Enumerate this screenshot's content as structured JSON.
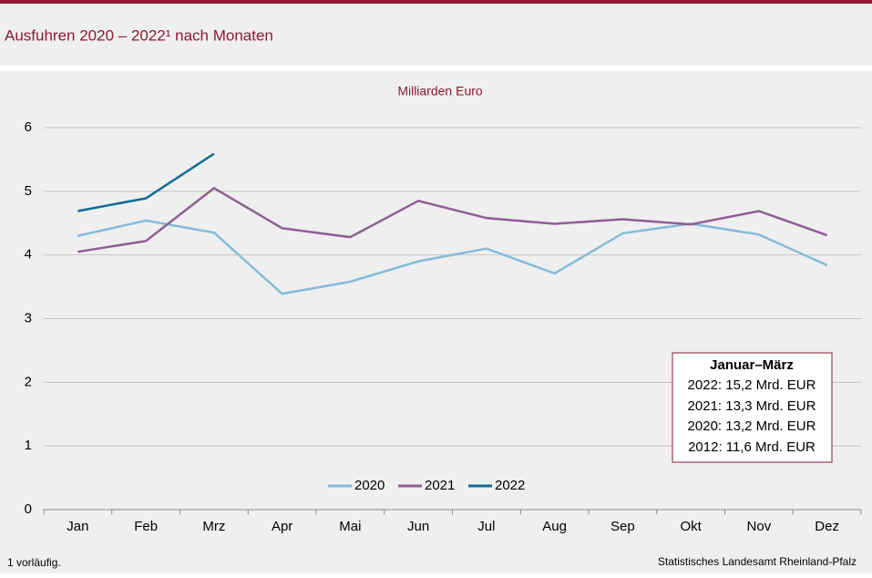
{
  "chart_data": {
    "type": "line",
    "title": "Ausfuhren 2020 – 2022¹ nach Monaten",
    "subtitle": "Milliarden Euro",
    "categories": [
      "Jan",
      "Feb",
      "Mrz",
      "Apr",
      "Mai",
      "Jun",
      "Jul",
      "Aug",
      "Sep",
      "Okt",
      "Nov",
      "Dez"
    ],
    "series": [
      {
        "name": "2020",
        "color": "#84bcd8",
        "values": [
          4.3,
          4.54,
          4.35,
          3.39,
          3.58,
          3.9,
          4.1,
          3.71,
          4.34,
          4.49,
          4.32,
          3.84
        ]
      },
      {
        "name": "2021",
        "color": "#8e5e93",
        "values": [
          4.05,
          4.22,
          5.05,
          4.42,
          4.28,
          4.85,
          4.58,
          4.49,
          4.56,
          4.48,
          4.69,
          4.31
        ]
      },
      {
        "name": "2022",
        "color": "#0e6b96",
        "values": [
          4.69,
          4.89,
          5.59,
          null,
          null,
          null,
          null,
          null,
          null,
          null,
          null,
          null
        ]
      }
    ],
    "ylim": [
      0,
      6
    ],
    "yticks": [
      0,
      1,
      2,
      3,
      4,
      5,
      6
    ],
    "grid": true,
    "info_box": {
      "title": "Januar–März",
      "lines": [
        "2022: 15,2 Mrd. EUR",
        "2021: 13,3 Mrd. EUR",
        "2020: 13,2 Mrd. EUR",
        "2012: 11,6 Mrd. EUR"
      ]
    },
    "footnote": "1 vorläufig.",
    "source": "Statistisches Landesamt Rheinland-Pfalz"
  }
}
